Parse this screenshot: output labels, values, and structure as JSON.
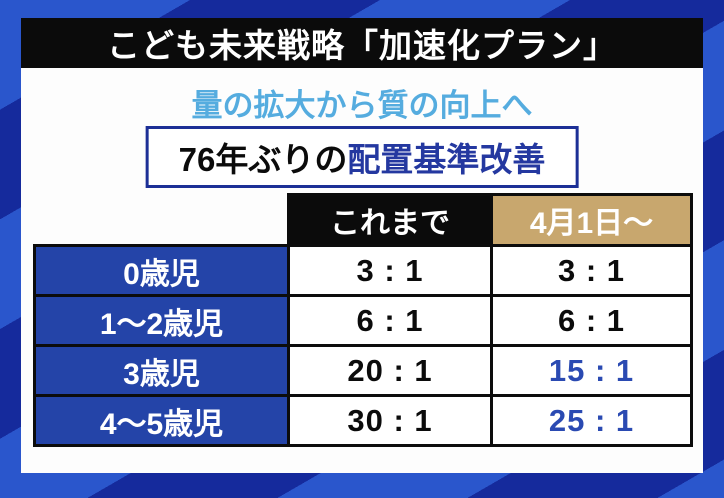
{
  "header": {
    "title": "こども未来戦略「加速化プラン」"
  },
  "subtitle": "量の拡大から質の向上へ",
  "highlight_box": {
    "prefix": "76年ぶりの",
    "emphasis": "配置基準改善"
  },
  "table": {
    "column_headers": {
      "before": "これまで",
      "after": "4月1日～"
    },
    "rows": [
      {
        "label": "0歳児",
        "before": "3 : 1",
        "after": "3 : 1",
        "after_changed": false
      },
      {
        "label": "1～2歳児",
        "before": "6 : 1",
        "after": "6 : 1",
        "after_changed": false
      },
      {
        "label": "3歳児",
        "before": "20 : 1",
        "after": "15 : 1",
        "after_changed": true
      },
      {
        "label": "4～5歳児",
        "before": "30 : 1",
        "after": "25 : 1",
        "after_changed": true
      }
    ]
  },
  "colors": {
    "stripe_bright": "#2a56cc",
    "stripe_dark": "#152a9c",
    "title_bar_bg": "#0b0b0b",
    "subtitle_text": "#55acdf",
    "highlight_border": "#1c2f96",
    "highlight_emphasis_text": "#2438a0",
    "row_header_bg": "#2444a8",
    "header_before_bg": "#0b0b0b",
    "header_after_bg": "#c8a76e",
    "changed_value_text": "#2a4ab2"
  },
  "chart_data": {
    "type": "table",
    "title": "こども未来戦略「加速化プラン」",
    "subtitle": "量の拡大から質の向上へ",
    "annotation": "76年ぶりの配置基準改善",
    "columns": [
      "",
      "これまで",
      "4月1日～"
    ],
    "rows": [
      [
        "0歳児",
        "3 : 1",
        "3 : 1"
      ],
      [
        "1～2歳児",
        "6 : 1",
        "6 : 1"
      ],
      [
        "3歳児",
        "20 : 1",
        "15 : 1"
      ],
      [
        "4～5歳児",
        "30 : 1",
        "25 : 1"
      ]
    ],
    "highlighted_cells": [
      {
        "row": "3歳児",
        "column": "4月1日～",
        "value": "15 : 1"
      },
      {
        "row": "4～5歳児",
        "column": "4月1日～",
        "value": "25 : 1"
      }
    ],
    "layout_hints": {
      "row_header_style": "white-on-blue",
      "before_header_style": "white-on-black",
      "after_header_style": "white-on-tan",
      "changed_values_color": "blue"
    }
  }
}
